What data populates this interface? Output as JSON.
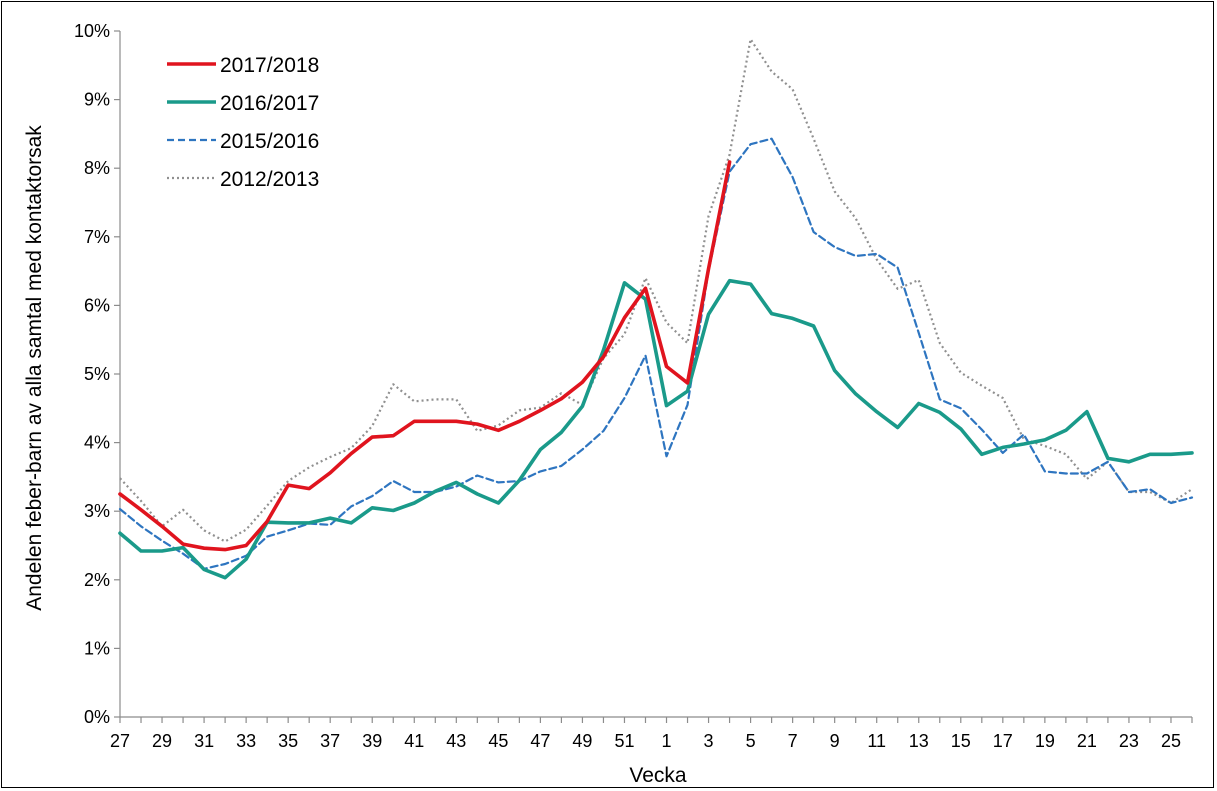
{
  "chart_data": {
    "type": "line",
    "title": "",
    "xlabel": "Vecka",
    "ylabel": "Andelen feber-barn av alla samtal med kontaktorsak",
    "ylim": [
      0,
      10
    ],
    "y_ticks": [
      "0%",
      "1%",
      "2%",
      "3%",
      "4%",
      "5%",
      "6%",
      "7%",
      "8%",
      "9%",
      "10%"
    ],
    "grid": false,
    "legend_position": "top-left",
    "categories": [
      "27",
      "28",
      "29",
      "30",
      "31",
      "32",
      "33",
      "34",
      "35",
      "36",
      "37",
      "38",
      "39",
      "40",
      "41",
      "42",
      "43",
      "44",
      "45",
      "46",
      "47",
      "48",
      "49",
      "50",
      "51",
      "52",
      "1",
      "2",
      "3",
      "4",
      "5",
      "6",
      "7",
      "8",
      "9",
      "10",
      "11",
      "12",
      "13",
      "14",
      "15",
      "16",
      "17",
      "18",
      "19",
      "20",
      "21",
      "22",
      "23",
      "24",
      "25",
      "26"
    ],
    "x_tick_labels": [
      "27",
      "29",
      "31",
      "33",
      "35",
      "37",
      "39",
      "41",
      "43",
      "45",
      "47",
      "49",
      "51",
      "1",
      "3",
      "5",
      "7",
      "9",
      "11",
      "13",
      "15",
      "17",
      "19",
      "21",
      "23",
      "25"
    ],
    "series": [
      {
        "name": "2017/2018",
        "color": "#e0141e",
        "style": "solid",
        "values": [
          3.25,
          3.02,
          2.78,
          2.52,
          2.46,
          2.44,
          2.5,
          2.85,
          3.38,
          3.33,
          3.56,
          3.84,
          4.08,
          4.1,
          4.31,
          4.31,
          4.31,
          4.27,
          4.18,
          4.31,
          4.47,
          4.64,
          4.88,
          5.25,
          5.82,
          6.25,
          5.11,
          4.87,
          6.53,
          8.09,
          null,
          null,
          null,
          null,
          null,
          null,
          null,
          null,
          null,
          null,
          null,
          null,
          null,
          null,
          null,
          null,
          null,
          null,
          null,
          null,
          null,
          null
        ]
      },
      {
        "name": "2016/2017",
        "color": "#1a9a8a",
        "style": "solid",
        "values": [
          2.68,
          2.42,
          2.42,
          2.47,
          2.15,
          2.03,
          2.3,
          2.84,
          2.83,
          2.83,
          2.9,
          2.83,
          3.05,
          3.01,
          3.12,
          3.29,
          3.42,
          3.25,
          3.12,
          3.45,
          3.9,
          4.15,
          4.53,
          5.35,
          6.33,
          6.09,
          4.54,
          4.75,
          5.87,
          6.36,
          6.31,
          5.88,
          5.81,
          5.7,
          5.05,
          4.71,
          4.45,
          4.22,
          4.57,
          4.44,
          4.2,
          3.83,
          3.93,
          3.98,
          4.04,
          4.18,
          4.45,
          3.77,
          3.72,
          3.83,
          3.83,
          3.85
        ]
      },
      {
        "name": "2015/2016",
        "color": "#2e75c0",
        "style": "dashed",
        "values": [
          3.03,
          2.78,
          2.57,
          2.38,
          2.16,
          2.23,
          2.35,
          2.63,
          2.72,
          2.82,
          2.8,
          3.07,
          3.22,
          3.44,
          3.28,
          3.28,
          3.36,
          3.52,
          3.42,
          3.44,
          3.58,
          3.66,
          3.9,
          4.17,
          4.65,
          5.27,
          3.8,
          4.55,
          6.5,
          7.95,
          8.35,
          8.43,
          7.87,
          7.07,
          6.85,
          6.72,
          6.75,
          6.55,
          5.6,
          4.63,
          4.5,
          4.19,
          3.85,
          4.12,
          3.58,
          3.55,
          3.55,
          3.72,
          3.28,
          3.32,
          3.12,
          3.2
        ]
      },
      {
        "name": "2012/2013",
        "color": "#909090",
        "style": "dotted",
        "values": [
          3.48,
          3.15,
          2.78,
          3.02,
          2.72,
          2.56,
          2.73,
          3.08,
          3.44,
          3.64,
          3.79,
          3.92,
          4.24,
          4.85,
          4.6,
          4.63,
          4.63,
          4.17,
          4.25,
          4.47,
          4.51,
          4.72,
          4.55,
          5.23,
          5.58,
          6.4,
          5.75,
          5.45,
          7.3,
          8.2,
          9.88,
          9.41,
          9.15,
          8.43,
          7.66,
          7.27,
          6.67,
          6.24,
          6.37,
          5.45,
          5.02,
          4.83,
          4.65,
          4.05,
          3.95,
          3.83,
          3.47,
          3.72,
          3.28,
          3.28,
          3.12,
          3.32
        ]
      }
    ]
  }
}
